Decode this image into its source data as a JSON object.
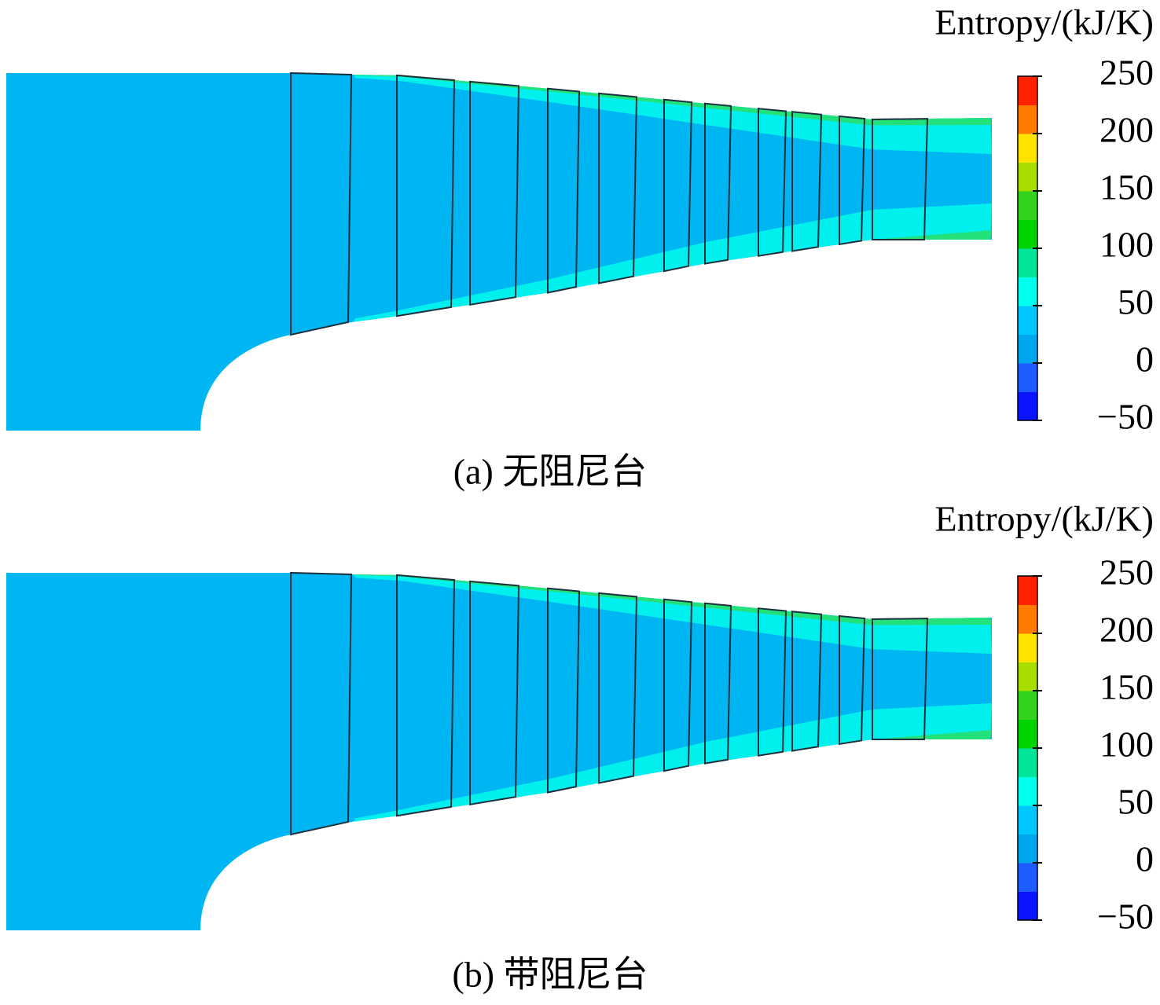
{
  "panels": [
    {
      "colorbar": {
        "label": "Entropy/(kJ/K)",
        "ticks": [
          {
            "value": -50,
            "label": "−50"
          },
          0,
          50,
          100,
          150,
          200,
          250
        ],
        "colors": [
          "#0a14ff",
          "#1f5cff",
          "#00a6ee",
          "#00c8ff",
          "#00ffee",
          "#00e59a",
          "#00d400",
          "#33d21e",
          "#a8dd00",
          "#ffe400",
          "#ff7a00",
          "#ff2200"
        ]
      },
      "caption": "(a) 无阻尼台"
    },
    {
      "colorbar": {
        "label": "Entropy/(kJ/K)",
        "ticks": [
          {
            "value": -50,
            "label": "−50"
          },
          0,
          50,
          100,
          150,
          200,
          250
        ],
        "colors": [
          "#0a14ff",
          "#1f5cff",
          "#00a6ee",
          "#00c8ff",
          "#00ffee",
          "#00e59a",
          "#00d400",
          "#33d21e",
          "#a8dd00",
          "#ffe400",
          "#ff7a00",
          "#ff2200"
        ]
      },
      "caption": "(b) 带阻尼台"
    }
  ]
}
